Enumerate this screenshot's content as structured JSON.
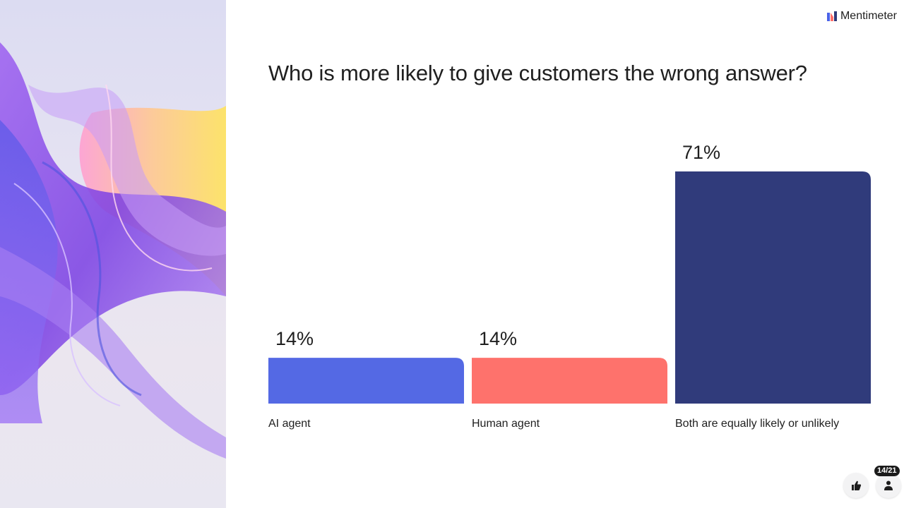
{
  "brand": {
    "name": "Mentimeter",
    "icon": "mentimeter-logo-icon"
  },
  "slide": {
    "question": "Who is more likely to give customers the wrong answer?",
    "counter": "14/21"
  },
  "footer": {
    "reactions_icon": "thumbs-up-icon",
    "participants_icon": "person-icon"
  },
  "chart_data": {
    "type": "bar",
    "title": "Who is more likely to give customers the wrong answer?",
    "categories": [
      "AI agent",
      "Human agent",
      "Both are equally likely or unlikely"
    ],
    "values": [
      14,
      14,
      71
    ],
    "value_labels": [
      "14%",
      "14%",
      "71%"
    ],
    "colors": [
      "#5469e4",
      "#fe726c",
      "#303b7b"
    ],
    "ylim": [
      0,
      71
    ],
    "grid": false,
    "legend": "none"
  }
}
